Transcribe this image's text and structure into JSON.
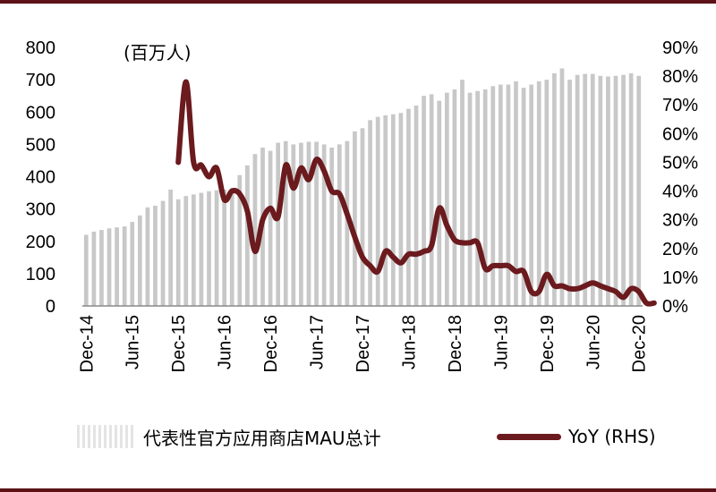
{
  "chart_data": {
    "type": "bar+line",
    "unit_label": "(百万人)",
    "x_tick_labels": [
      "Dec-14",
      "Jun-15",
      "Dec-15",
      "Jun-16",
      "Dec-16",
      "Jun-17",
      "Dec-17",
      "Jun-18",
      "Dec-18",
      "Jun-19",
      "Dec-19",
      "Jun-20",
      "Dec-20"
    ],
    "y_left": {
      "min": 0,
      "max": 800,
      "step": 100
    },
    "y_right": {
      "min": 0,
      "max": 90,
      "step": 10,
      "format": "percent"
    },
    "start_month": "Dec-14",
    "series": [
      {
        "name": "代表性官方应用商店MAU总计",
        "axis": "left",
        "kind": "bar",
        "color": "#c8c8c8",
        "values": [
          220,
          230,
          235,
          240,
          243,
          246,
          260,
          280,
          305,
          310,
          325,
          360,
          330,
          340,
          345,
          350,
          355,
          358,
          360,
          365,
          405,
          435,
          470,
          490,
          480,
          505,
          510,
          500,
          505,
          508,
          508,
          500,
          490,
          500,
          510,
          540,
          550,
          575,
          585,
          590,
          593,
          597,
          610,
          620,
          650,
          655,
          635,
          660,
          670,
          700,
          660,
          665,
          670,
          680,
          685,
          685,
          695,
          675,
          685,
          695,
          700,
          720,
          735,
          700,
          715,
          718,
          718,
          712,
          710,
          712,
          715,
          720,
          712
        ]
      },
      {
        "name": "YoY (RHS)",
        "axis": "right",
        "kind": "line",
        "color": "#6b1a1e",
        "start_index": 12,
        "values": [
          50,
          78,
          50,
          49,
          45,
          48,
          37,
          40,
          39,
          33,
          19,
          30,
          34,
          31,
          49,
          41,
          48,
          44,
          51,
          47,
          40,
          39,
          32,
          24,
          17,
          14,
          12,
          19,
          17,
          15,
          18,
          18,
          19,
          21,
          34,
          28,
          23,
          22,
          22,
          22,
          13,
          14,
          14,
          14,
          12,
          12,
          5,
          5,
          11,
          7,
          7,
          6,
          6,
          7,
          8,
          7,
          6,
          5,
          3,
          6,
          5,
          1,
          1
        ]
      }
    ],
    "legend": {
      "position": "bottom"
    }
  }
}
